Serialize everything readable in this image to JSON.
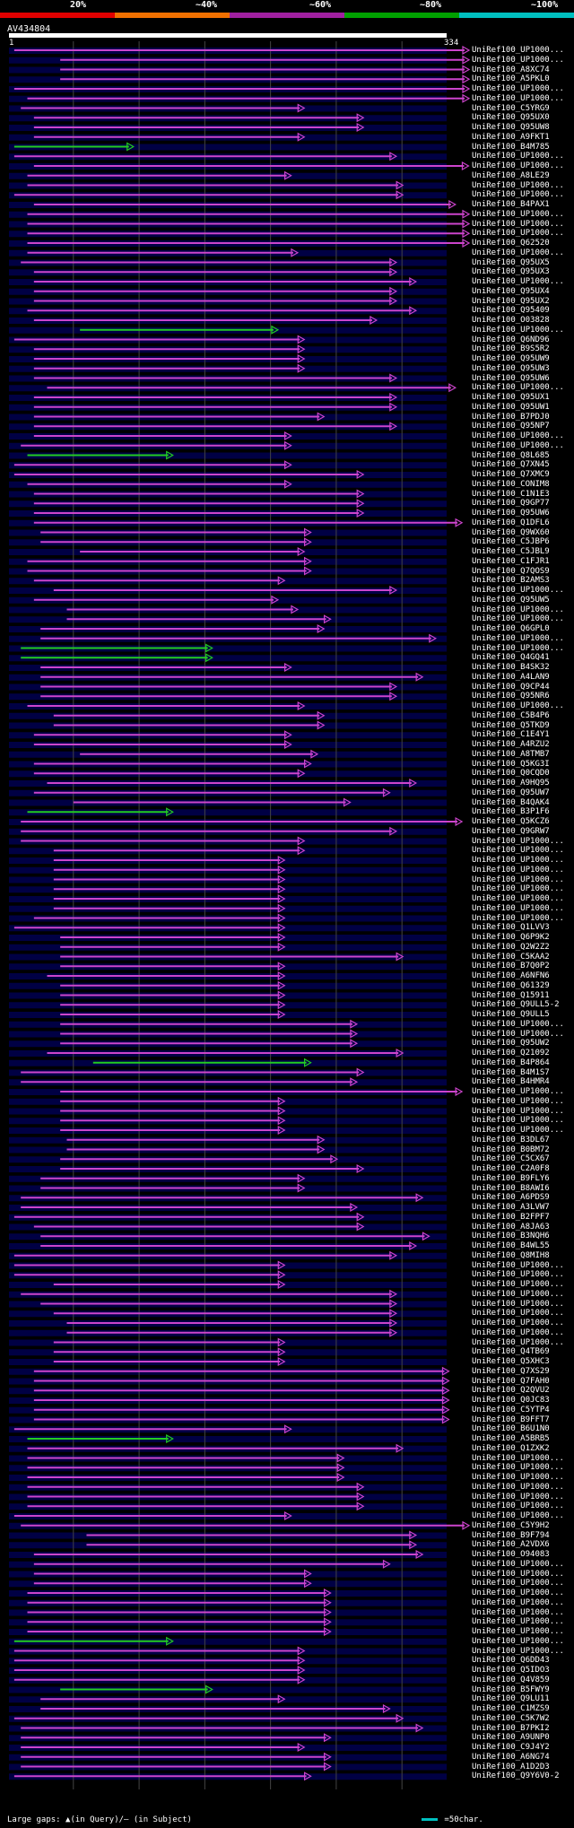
{
  "query": {
    "name": "AV434804",
    "start": "1",
    "end": "334",
    "length": 334
  },
  "scale": {
    "labels": [
      "20%",
      "~40%",
      "~60%",
      "~80%",
      "~100%"
    ],
    "colors": [
      "#e00000",
      "#f07000",
      "#a020a0",
      "#00a000",
      "#00c0c0"
    ]
  },
  "colors": {
    "hit": "#cc44cc",
    "hit_green": "#22cc22",
    "gap": "#ffffff",
    "track": "#000044",
    "grid": "#444444"
  },
  "legend": {
    "gaps": "Large gaps: ▲(in Query)/– (in Subject)",
    "scale": "=50char."
  },
  "hits": [
    {
      "label": "UniRef100_UP1000...",
      "s": 5,
      "e": 352,
      "c": "m"
    },
    {
      "label": "UniRef100_UP1000...",
      "s": 40,
      "e": 352,
      "c": "m"
    },
    {
      "label": "UniRef100_A8XC74",
      "s": 40,
      "e": 352,
      "c": "m"
    },
    {
      "label": "UniRef100_A5PKL0",
      "s": 40,
      "e": 352,
      "c": "m"
    },
    {
      "label": "UniRef100_UP1000...",
      "s": 5,
      "e": 360,
      "c": "m"
    },
    {
      "label": "UniRef100_UP1000...",
      "s": 15,
      "e": 352,
      "c": "m"
    },
    {
      "label": "UniRef100_C5YRG9",
      "s": 10,
      "e": 225,
      "c": "m"
    },
    {
      "label": "UniRef100_Q95UX0",
      "s": 20,
      "e": 270,
      "c": "m"
    },
    {
      "label": "UniRef100_Q95UW8",
      "s": 20,
      "e": 270,
      "c": "m"
    },
    {
      "label": "UniRef100_A9FKT1",
      "s": 20,
      "e": 225,
      "c": "m"
    },
    {
      "label": "UniRef100_B4M785",
      "s": 5,
      "e": 95,
      "c": "g"
    },
    {
      "label": "UniRef100_UP1000...",
      "s": 5,
      "e": 295,
      "c": "m"
    },
    {
      "label": "UniRef100_UP1000...",
      "s": 20,
      "e": 350,
      "c": "m"
    },
    {
      "label": "UniRef100_A8LE29",
      "s": 15,
      "e": 215,
      "c": "m"
    },
    {
      "label": "UniRef100_UP1000...",
      "s": 15,
      "e": 300,
      "c": "m"
    },
    {
      "label": "UniRef100_UP1000...",
      "s": 5,
      "e": 300,
      "c": "m"
    },
    {
      "label": "UniRef100_B4PAX1",
      "s": 20,
      "e": 340,
      "c": "m"
    },
    {
      "label": "UniRef100_UP1000...",
      "s": 15,
      "e": 352,
      "c": "m"
    },
    {
      "label": "UniRef100_UP1000...",
      "s": 15,
      "e": 352,
      "c": "m"
    },
    {
      "label": "UniRef100_UP1000...",
      "s": 15,
      "e": 352,
      "c": "m"
    },
    {
      "label": "UniRef100_Q62520",
      "s": 15,
      "e": 352,
      "c": "m"
    },
    {
      "label": "UniRef100_UP1000...",
      "s": 15,
      "e": 220,
      "c": "m"
    },
    {
      "label": "UniRef100_Q95UX5",
      "s": 10,
      "e": 295,
      "c": "m"
    },
    {
      "label": "UniRef100_Q95UX3",
      "s": 20,
      "e": 295,
      "c": "m"
    },
    {
      "label": "UniRef100_UP1000...",
      "s": 20,
      "e": 310,
      "c": "m"
    },
    {
      "label": "UniRef100_Q95UX4",
      "s": 20,
      "e": 295,
      "c": "m"
    },
    {
      "label": "UniRef100_Q95UX2",
      "s": 20,
      "e": 295,
      "c": "m"
    },
    {
      "label": "UniRef100_Q95409",
      "s": 15,
      "e": 310,
      "c": "m"
    },
    {
      "label": "UniRef100_O03828",
      "s": 20,
      "e": 280,
      "c": "m"
    },
    {
      "label": "UniRef100_UP1000...",
      "s": 55,
      "e": 205,
      "c": "g"
    },
    {
      "label": "UniRef100_Q6ND96",
      "s": 5,
      "e": 225,
      "c": "m"
    },
    {
      "label": "UniRef100_B9S5R2",
      "s": 20,
      "e": 225,
      "c": "m"
    },
    {
      "label": "UniRef100_Q95UW9",
      "s": 20,
      "e": 225,
      "c": "m"
    },
    {
      "label": "UniRef100_Q95UW3",
      "s": 20,
      "e": 225,
      "c": "m"
    },
    {
      "label": "UniRef100_Q95UW6",
      "s": 20,
      "e": 295,
      "c": "m"
    },
    {
      "label": "UniRef100_UP1000...",
      "s": 30,
      "e": 340,
      "c": "m"
    },
    {
      "label": "UniRef100_Q95UX1",
      "s": 20,
      "e": 295,
      "c": "m"
    },
    {
      "label": "UniRef100_Q95UW1",
      "s": 20,
      "e": 295,
      "c": "m"
    },
    {
      "label": "UniRef100_B7PDJ0",
      "s": 20,
      "e": 240,
      "c": "m"
    },
    {
      "label": "UniRef100_Q95NP7",
      "s": 20,
      "e": 295,
      "c": "m"
    },
    {
      "label": "UniRef100_UP1000...",
      "s": 20,
      "e": 215,
      "c": "m"
    },
    {
      "label": "UniRef100_UP1000...",
      "s": 10,
      "e": 215,
      "c": "m"
    },
    {
      "label": "UniRef100_Q8L685",
      "s": 15,
      "e": 125,
      "c": "g"
    },
    {
      "label": "UniRef100_Q7XN45",
      "s": 5,
      "e": 215,
      "c": "m"
    },
    {
      "label": "UniRef100_Q7XMC9",
      "s": 5,
      "e": 270,
      "c": "m"
    },
    {
      "label": "UniRef100_CONIM8",
      "s": 15,
      "e": 215,
      "c": "m"
    },
    {
      "label": "UniRef100_C1N1E3",
      "s": 20,
      "e": 270,
      "c": "m"
    },
    {
      "label": "UniRef100_Q9GP77",
      "s": 20,
      "e": 270,
      "c": "m"
    },
    {
      "label": "UniRef100_Q95UW6",
      "s": 20,
      "e": 270,
      "c": "m"
    },
    {
      "label": "UniRef100_Q1DFL6",
      "s": 20,
      "e": 345,
      "c": "m"
    },
    {
      "label": "UniRef100_Q9WX60",
      "s": 25,
      "e": 230,
      "c": "m"
    },
    {
      "label": "UniRef100_C5JBP6",
      "s": 25,
      "e": 230,
      "c": "m"
    },
    {
      "label": "UniRef100_C5JBL9",
      "s": 55,
      "e": 225,
      "c": "m"
    },
    {
      "label": "UniRef100_C1FJR1",
      "s": 15,
      "e": 230,
      "c": "m"
    },
    {
      "label": "UniRef100_Q7QOS9",
      "s": 15,
      "e": 230,
      "c": "m"
    },
    {
      "label": "UniRef100_B2AMS3",
      "s": 20,
      "e": 210,
      "c": "m"
    },
    {
      "label": "UniRef100_UP1000...",
      "s": 35,
      "e": 295,
      "c": "m"
    },
    {
      "label": "UniRef100_Q95UW5",
      "s": 20,
      "e": 205,
      "c": "m"
    },
    {
      "label": "UniRef100_UP1000...",
      "s": 45,
      "e": 220,
      "c": "m"
    },
    {
      "label": "UniRef100_UP1000...",
      "s": 45,
      "e": 245,
      "c": "m"
    },
    {
      "label": "UniRef100_Q6GPL0",
      "s": 25,
      "e": 240,
      "c": "m"
    },
    {
      "label": "UniRef100_UP1000...",
      "s": 25,
      "e": 325,
      "c": "m"
    },
    {
      "label": "UniRef100_UP1000...",
      "s": 10,
      "e": 155,
      "c": "g"
    },
    {
      "label": "UniRef100_Q4GQ41",
      "s": 10,
      "e": 155,
      "c": "g"
    },
    {
      "label": "UniRef100_B4SK32",
      "s": 25,
      "e": 215,
      "c": "m"
    },
    {
      "label": "UniRef100_A4LAN9",
      "s": 25,
      "e": 315,
      "c": "m"
    },
    {
      "label": "UniRef100_Q9CP44",
      "s": 25,
      "e": 295,
      "c": "m"
    },
    {
      "label": "UniRef100_Q95NR6",
      "s": 25,
      "e": 295,
      "c": "m"
    },
    {
      "label": "UniRef100_UP1000...",
      "s": 15,
      "e": 225,
      "c": "m"
    },
    {
      "label": "UniRef100_C5B4P6",
      "s": 35,
      "e": 240,
      "c": "m"
    },
    {
      "label": "UniRef100_Q5TKD9",
      "s": 35,
      "e": 240,
      "c": "m"
    },
    {
      "label": "UniRef100_C1E4Y1",
      "s": 20,
      "e": 215,
      "c": "m"
    },
    {
      "label": "UniRef100_A4RZU2",
      "s": 20,
      "e": 215,
      "c": "m"
    },
    {
      "label": "UniRef100_A8TMB7",
      "s": 55,
      "e": 235,
      "c": "m"
    },
    {
      "label": "UniRef100_Q5KG3I",
      "s": 20,
      "e": 230,
      "c": "m"
    },
    {
      "label": "UniRef100_Q0CQD0",
      "s": 20,
      "e": 225,
      "c": "m"
    },
    {
      "label": "UniRef100_A9HQ95",
      "s": 30,
      "e": 310,
      "c": "m"
    },
    {
      "label": "UniRef100_Q95UW7",
      "s": 20,
      "e": 290,
      "c": "m"
    },
    {
      "label": "UniRef100_B4QAK4",
      "s": 50,
      "e": 260,
      "c": "m"
    },
    {
      "label": "UniRef100_B3P1F6",
      "s": 15,
      "e": 125,
      "c": "g"
    },
    {
      "label": "UniRef100_Q5KCZ6",
      "s": 10,
      "e": 345,
      "c": "m"
    },
    {
      "label": "UniRef100_Q9GRW7",
      "s": 10,
      "e": 295,
      "c": "m"
    },
    {
      "label": "UniRef100_UP1000...",
      "s": 10,
      "e": 225,
      "c": "m"
    },
    {
      "label": "UniRef100_UP1000...",
      "s": 35,
      "e": 225,
      "c": "m"
    },
    {
      "label": "UniRef100_UP1000...",
      "s": 35,
      "e": 210,
      "c": "m"
    },
    {
      "label": "UniRef100_UP1000...",
      "s": 35,
      "e": 210,
      "c": "m"
    },
    {
      "label": "UniRef100_UP1000...",
      "s": 35,
      "e": 210,
      "c": "m"
    },
    {
      "label": "UniRef100_UP1000...",
      "s": 35,
      "e": 210,
      "c": "m"
    },
    {
      "label": "UniRef100_UP1000...",
      "s": 35,
      "e": 210,
      "c": "m"
    },
    {
      "label": "UniRef100_UP1000...",
      "s": 35,
      "e": 210,
      "c": "m"
    },
    {
      "label": "UniRef100_UP1000...",
      "s": 20,
      "e": 210,
      "c": "m"
    },
    {
      "label": "UniRef100_Q1LVV3",
      "s": 5,
      "e": 210,
      "c": "m"
    },
    {
      "label": "UniRef100_Q6P9K2",
      "s": 40,
      "e": 210,
      "c": "m"
    },
    {
      "label": "UniRef100_Q2W2Z2",
      "s": 40,
      "e": 210,
      "c": "m"
    },
    {
      "label": "UniRef100_C5KAA2",
      "s": 40,
      "e": 300,
      "c": "m"
    },
    {
      "label": "UniRef100_B7Q0P2",
      "s": 40,
      "e": 210,
      "c": "m"
    },
    {
      "label": "UniRef100_A6NFN6",
      "s": 30,
      "e": 210,
      "c": "m"
    },
    {
      "label": "UniRef100_Q61329",
      "s": 40,
      "e": 210,
      "c": "m"
    },
    {
      "label": "UniRef100_Q15911",
      "s": 40,
      "e": 210,
      "c": "m"
    },
    {
      "label": "UniRef100_Q9ULL5-2",
      "s": 40,
      "e": 210,
      "c": "m"
    },
    {
      "label": "UniRef100_Q9ULL5",
      "s": 40,
      "e": 210,
      "c": "m"
    },
    {
      "label": "UniRef100_UP1000...",
      "s": 40,
      "e": 265,
      "c": "m"
    },
    {
      "label": "UniRef100_UP1000...",
      "s": 40,
      "e": 265,
      "c": "m"
    },
    {
      "label": "UniRef100_Q95UW2",
      "s": 40,
      "e": 265,
      "c": "m"
    },
    {
      "label": "UniRef100_Q21092",
      "s": 30,
      "e": 300,
      "c": "m"
    },
    {
      "label": "UniRef100_B4P864",
      "s": 65,
      "e": 230,
      "c": "g"
    },
    {
      "label": "UniRef100_B4M1S7",
      "s": 10,
      "e": 270,
      "c": "m"
    },
    {
      "label": "UniRef100_B4HMR4",
      "s": 10,
      "e": 265,
      "c": "m"
    },
    {
      "label": "UniRef100_UP1000...",
      "s": 40,
      "e": 345,
      "c": "m"
    },
    {
      "label": "UniRef100_UP1000...",
      "s": 40,
      "e": 210,
      "c": "m"
    },
    {
      "label": "UniRef100_UP1000...",
      "s": 40,
      "e": 210,
      "c": "m"
    },
    {
      "label": "UniRef100_UP1000...",
      "s": 40,
      "e": 210,
      "c": "m"
    },
    {
      "label": "UniRef100_UP1000...",
      "s": 40,
      "e": 210,
      "c": "m"
    },
    {
      "label": "UniRef100_B3DL67",
      "s": 45,
      "e": 240,
      "c": "m"
    },
    {
      "label": "UniRef100_B0BM72",
      "s": 45,
      "e": 240,
      "c": "m"
    },
    {
      "label": "UniRef100_C5CX67",
      "s": 40,
      "e": 250,
      "c": "m"
    },
    {
      "label": "UniRef100_C2A0F8",
      "s": 40,
      "e": 270,
      "c": "m"
    },
    {
      "label": "UniRef100_B9FLY6",
      "s": 25,
      "e": 225,
      "c": "m"
    },
    {
      "label": "UniRef100_B8AWI6",
      "s": 25,
      "e": 225,
      "c": "m"
    },
    {
      "label": "UniRef100_A6PDS9",
      "s": 10,
      "e": 315,
      "c": "m"
    },
    {
      "label": "UniRef100_A3LVW7",
      "s": 10,
      "e": 265,
      "c": "m"
    },
    {
      "label": "UniRef100_B2FPF7",
      "s": 5,
      "e": 270,
      "c": "m"
    },
    {
      "label": "UniRef100_A8JA63",
      "s": 20,
      "e": 270,
      "c": "m"
    },
    {
      "label": "UniRef100_B3NQH6",
      "s": 25,
      "e": 320,
      "c": "m"
    },
    {
      "label": "UniRef100_B4WL55",
      "s": 25,
      "e": 310,
      "c": "m"
    },
    {
      "label": "UniRef100_Q8MIH8",
      "s": 5,
      "e": 295,
      "c": "m"
    },
    {
      "label": "UniRef100_UP1000...",
      "s": 5,
      "e": 210,
      "c": "m"
    },
    {
      "label": "UniRef100_UP1000...",
      "s": 5,
      "e": 210,
      "c": "m"
    },
    {
      "label": "UniRef100_UP1000...",
      "s": 35,
      "e": 210,
      "c": "m"
    },
    {
      "label": "UniRef100_UP1000...",
      "s": 10,
      "e": 295,
      "c": "m"
    },
    {
      "label": "UniRef100_UP1000...",
      "s": 25,
      "e": 295,
      "c": "m"
    },
    {
      "label": "UniRef100_UP1000...",
      "s": 35,
      "e": 295,
      "c": "m"
    },
    {
      "label": "UniRef100_UP1000...",
      "s": 45,
      "e": 295,
      "c": "m"
    },
    {
      "label": "UniRef100_UP1000...",
      "s": 45,
      "e": 295,
      "c": "m"
    },
    {
      "label": "UniRef100_UP1000...",
      "s": 35,
      "e": 210,
      "c": "m"
    },
    {
      "label": "UniRef100_Q4TB69",
      "s": 35,
      "e": 210,
      "c": "m"
    },
    {
      "label": "UniRef100_Q5XHC3",
      "s": 35,
      "e": 210,
      "c": "m"
    },
    {
      "label": "UniRef100_Q7XS29",
      "s": 20,
      "e": 335,
      "c": "m"
    },
    {
      "label": "UniRef100_Q7FAH0",
      "s": 20,
      "e": 335,
      "c": "m"
    },
    {
      "label": "UniRef100_Q2QVU2",
      "s": 20,
      "e": 335,
      "c": "m"
    },
    {
      "label": "UniRef100_Q0JC83",
      "s": 20,
      "e": 335,
      "c": "m"
    },
    {
      "label": "UniRef100_C5YTP4",
      "s": 20,
      "e": 335,
      "c": "m"
    },
    {
      "label": "UniRef100_B9FFT7",
      "s": 20,
      "e": 335,
      "c": "m"
    },
    {
      "label": "UniRef100_B6U1N0",
      "s": 5,
      "e": 215,
      "c": "m"
    },
    {
      "label": "UniRef100_A5BRB5",
      "s": 15,
      "e": 125,
      "c": "g"
    },
    {
      "label": "UniRef100_Q1ZXK2",
      "s": 15,
      "e": 300,
      "c": "m"
    },
    {
      "label": "UniRef100_UP1000...",
      "s": 15,
      "e": 255,
      "c": "m"
    },
    {
      "label": "UniRef100_UP1000...",
      "s": 15,
      "e": 255,
      "c": "m"
    },
    {
      "label": "UniRef100_UP1000...",
      "s": 15,
      "e": 255,
      "c": "m"
    },
    {
      "label": "UniRef100_UP1000...",
      "s": 15,
      "e": 270,
      "c": "m"
    },
    {
      "label": "UniRef100_UP1000...",
      "s": 15,
      "e": 270,
      "c": "m"
    },
    {
      "label": "UniRef100_UP1000...",
      "s": 15,
      "e": 270,
      "c": "m"
    },
    {
      "label": "UniRef100_UP1000...",
      "s": 5,
      "e": 215,
      "c": "m"
    },
    {
      "label": "UniRef100_C5Y9H2",
      "s": 10,
      "e": 360,
      "c": "m"
    },
    {
      "label": "UniRef100_B9F794",
      "s": 60,
      "e": 310,
      "c": "m"
    },
    {
      "label": "UniRef100_A2VDX6",
      "s": 60,
      "e": 310,
      "c": "m"
    },
    {
      "label": "UniRef100_O94083",
      "s": 20,
      "e": 315,
      "c": "m"
    },
    {
      "label": "UniRef100_UP1000...",
      "s": 20,
      "e": 290,
      "c": "m"
    },
    {
      "label": "UniRef100_UP1000...",
      "s": 20,
      "e": 230,
      "c": "m"
    },
    {
      "label": "UniRef100_UP1000...",
      "s": 20,
      "e": 230,
      "c": "m"
    },
    {
      "label": "UniRef100_UP1000...",
      "s": 15,
      "e": 245,
      "c": "m"
    },
    {
      "label": "UniRef100_UP1000...",
      "s": 15,
      "e": 245,
      "c": "m"
    },
    {
      "label": "UniRef100_UP1000...",
      "s": 15,
      "e": 245,
      "c": "m"
    },
    {
      "label": "UniRef100_UP1000...",
      "s": 15,
      "e": 245,
      "c": "m"
    },
    {
      "label": "UniRef100_UP1000...",
      "s": 15,
      "e": 245,
      "c": "m"
    },
    {
      "label": "UniRef100_UP1000...",
      "s": 5,
      "e": 125,
      "c": "g"
    },
    {
      "label": "UniRef100_UP1000...",
      "s": 5,
      "e": 225,
      "c": "m"
    },
    {
      "label": "UniRef100_Q6DD43",
      "s": 5,
      "e": 225,
      "c": "m"
    },
    {
      "label": "UniRef100_Q5IDO3",
      "s": 5,
      "e": 225,
      "c": "m"
    },
    {
      "label": "UniRef100_Q4V859",
      "s": 5,
      "e": 225,
      "c": "m"
    },
    {
      "label": "UniRef100_B5FWY9",
      "s": 40,
      "e": 155,
      "c": "g"
    },
    {
      "label": "UniRef100_Q9LU11",
      "s": 25,
      "e": 210,
      "c": "m"
    },
    {
      "label": "UniRef100_C1MZS9",
      "s": 25,
      "e": 290,
      "c": "m"
    },
    {
      "label": "UniRef100_C5K7W2",
      "s": 5,
      "e": 300,
      "c": "m"
    },
    {
      "label": "UniRef100_B7PKI2",
      "s": 10,
      "e": 315,
      "c": "m"
    },
    {
      "label": "UniRef100_A9UNP0",
      "s": 10,
      "e": 245,
      "c": "m"
    },
    {
      "label": "UniRef100_C9J4Y2",
      "s": 10,
      "e": 225,
      "c": "m"
    },
    {
      "label": "UniRef100_A6NG74",
      "s": 10,
      "e": 245,
      "c": "m"
    },
    {
      "label": "UniRef100_A1D2D3",
      "s": 10,
      "e": 245,
      "c": "m"
    },
    {
      "label": "UniRef100_Q9Y6V0-2",
      "s": 5,
      "e": 230,
      "c": "m"
    }
  ]
}
